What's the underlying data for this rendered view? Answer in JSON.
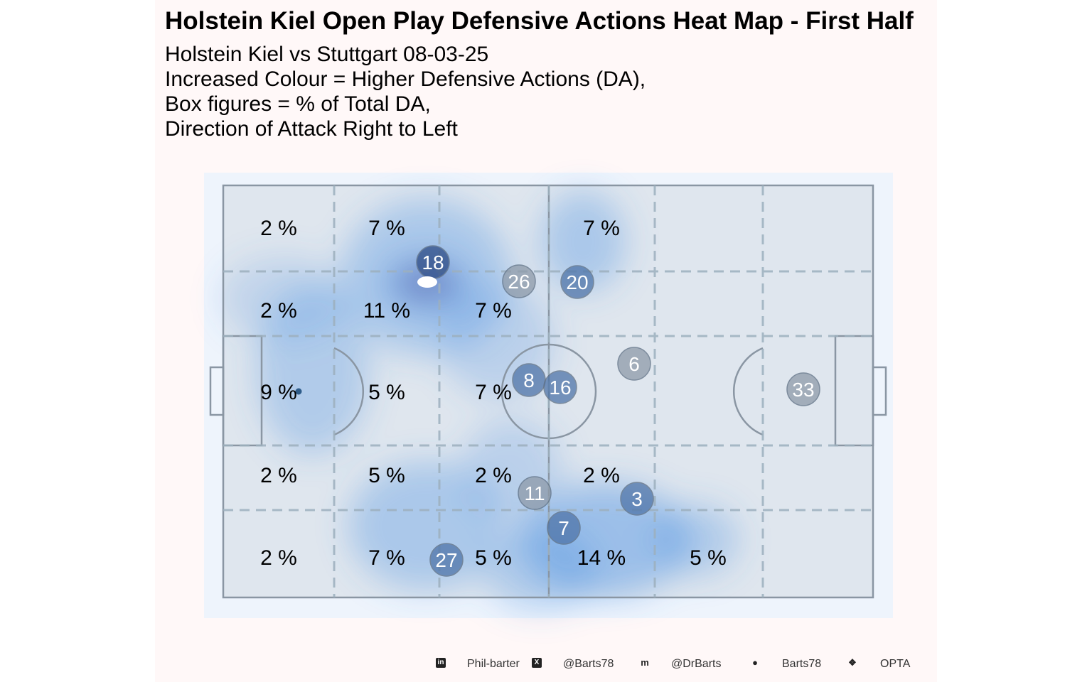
{
  "title": "Holstein Kiel Open Play Defensive Actions Heat Map - First Half",
  "subtitle_lines": [
    "Holstein Kiel vs Stuttgart 08-03-25",
    "Increased Colour = Higher Defensive Actions (DA),",
    "Box figures = % of Total DA,",
    "Direction of Attack Right to Left"
  ],
  "colors": {
    "panel": "#FFF8F8",
    "plot_bg": "#EEF4FC",
    "pitch": "#DFE6EE",
    "heat": "#4A90E2",
    "line": "#8A96A3"
  },
  "chart_data": {
    "type": "heatmap",
    "grid_columns": 6,
    "grid_rows": 5,
    "zone_percent": [
      [
        "2 %",
        "7 %",
        "",
        "7 %",
        "",
        ""
      ],
      [
        "2 %",
        "11 %",
        "7 %",
        "",
        "",
        ""
      ],
      [
        "9 %",
        "5 %",
        "7 %",
        "",
        "",
        ""
      ],
      [
        "2 %",
        "5 %",
        "2 %",
        "2 %",
        "",
        ""
      ],
      [
        "2 %",
        "7 %",
        "5 %",
        "14 %",
        "5 %",
        ""
      ]
    ],
    "players": [
      {
        "number": "18",
        "tone": "dark"
      },
      {
        "number": "26",
        "tone": "grey"
      },
      {
        "number": "20",
        "tone": "blue"
      },
      {
        "number": "6",
        "tone": "grey"
      },
      {
        "number": "8",
        "tone": "blue"
      },
      {
        "number": "16",
        "tone": "blue"
      },
      {
        "number": "33",
        "tone": "grey"
      },
      {
        "number": "11",
        "tone": "grey"
      },
      {
        "number": "3",
        "tone": "blue"
      },
      {
        "number": "7",
        "tone": "blue"
      },
      {
        "number": "27",
        "tone": "blue"
      }
    ]
  },
  "footer": [
    {
      "icon": "linkedin-icon",
      "glyph": "in",
      "label": "Phil-barter"
    },
    {
      "icon": "x-icon",
      "glyph": "X",
      "label": "@Barts78"
    },
    {
      "icon": "mastodon-icon",
      "glyph": "m",
      "label": "@DrBarts"
    },
    {
      "icon": "github-icon",
      "glyph": "●",
      "label": "Barts78"
    },
    {
      "icon": "dropbox-icon",
      "glyph": "❖",
      "label": "OPTA"
    }
  ]
}
